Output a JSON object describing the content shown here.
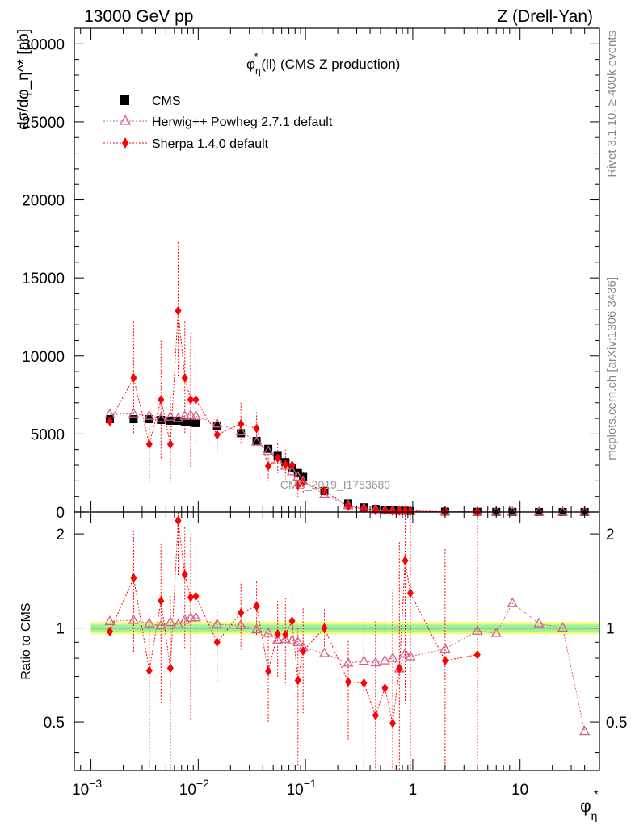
{
  "header": {
    "left": "13000 GeV pp",
    "right": "Z (Drell-Yan)"
  },
  "side_labels": {
    "rivet": "Rivet 3.1.10, ≥ 400k events",
    "source": "mcplots.cern.ch [arXiv:1306.3436]"
  },
  "watermark": "CMS_2019_I1753680",
  "chart_data": {
    "main": {
      "type": "scatter",
      "title_base": "φ",
      "title_sup": "*",
      "title_sub": "η",
      "title_rest": "(ll) (CMS Z production)",
      "ylabel": "dσ/dφ_η^* [pb]",
      "x_scale": "log",
      "xlim": [
        0.0007,
        55
      ],
      "ylim": [
        0,
        31000
      ],
      "y_ticks": [
        0,
        5000,
        10000,
        15000,
        20000,
        25000,
        30000
      ],
      "y_tick_labels": [
        "0",
        "5000",
        "10000",
        "15000",
        "20000",
        "25000",
        "30000"
      ],
      "legend_placement": "top-left",
      "x": [
        0.0015,
        0.0025,
        0.0035,
        0.0045,
        0.0055,
        0.0065,
        0.0075,
        0.0085,
        0.0095,
        0.015,
        0.025,
        0.035,
        0.045,
        0.055,
        0.065,
        0.075,
        0.085,
        0.095,
        0.15,
        0.25,
        0.35,
        0.45,
        0.55,
        0.65,
        0.75,
        0.85,
        0.95,
        2.0,
        4.0,
        6.0,
        8.5,
        15,
        25,
        40
      ],
      "series": [
        {
          "name": "CMS",
          "color": "#000000",
          "marker": "square",
          "values": [
            5950,
            5950,
            5950,
            5900,
            5850,
            5850,
            5800,
            5750,
            5700,
            5500,
            5050,
            4550,
            4050,
            3600,
            3200,
            2850,
            2500,
            2250,
            1350,
            550,
            300,
            200,
            140,
            105,
            85,
            70,
            58,
            28,
            14,
            8,
            5,
            3,
            2,
            1.5
          ]
        },
        {
          "name": "Herwig++ Powheg 2.7.1 default",
          "color": "#d06088",
          "marker": "triangle-open",
          "values": [
            6250,
            6300,
            6150,
            6000,
            6100,
            6000,
            6150,
            6200,
            6150,
            5650,
            5150,
            4500,
            3900,
            3300,
            2950,
            2600,
            2250,
            1950,
            1120,
            425,
            235,
            155,
            110,
            84,
            63,
            58,
            47,
            24,
            13.7,
            7.7,
            6.0,
            3.1,
            2.0,
            0.7
          ]
        },
        {
          "name": "Sherpa 1.4.0 default",
          "color": "#ff0000",
          "marker": "diamond",
          "values": [
            5800,
            8600,
            4350,
            7200,
            4350,
            12900,
            8600,
            7200,
            7200,
            4950,
            5650,
            5350,
            2950,
            3450,
            3050,
            3000,
            1700,
            1900,
            1350,
            370,
            200,
            105,
            90,
            52,
            63,
            115,
            75,
            22,
            11.5
          ]
        }
      ],
      "sherpa_err_hi": [
        6000,
        12200,
        6400,
        11000,
        7400,
        17300,
        12200,
        11500,
        10200,
        6200,
        7000,
        6400,
        3900,
        4400,
        4000,
        3900,
        2500,
        2600,
        1550,
        500,
        330,
        210,
        180,
        140,
        160,
        190,
        140,
        50,
        40
      ],
      "sherpa_err_lo": [
        5600,
        5000,
        1900,
        3400,
        1900,
        8600,
        5000,
        2900,
        4200,
        3700,
        4300,
        4300,
        2000,
        2500,
        2100,
        2100,
        900,
        1200,
        1150,
        240,
        70,
        0,
        0,
        0,
        0,
        40,
        10,
        0,
        0
      ]
    },
    "ratio": {
      "ylabel": "Ratio to CMS",
      "x_scale": "log",
      "ylim": [
        0.35,
        2.35
      ],
      "y_ticks": [
        0.5,
        1,
        2
      ],
      "y_tick_labels": [
        "0.5",
        "1",
        "2"
      ],
      "x_ticks": [
        0.001,
        0.01,
        0.1,
        1,
        10
      ],
      "x_tick_labels": [
        [
          "10",
          "−3"
        ],
        [
          "10",
          "−2"
        ],
        [
          "10",
          "−1"
        ],
        [
          "1",
          ""
        ],
        [
          "10",
          ""
        ]
      ],
      "xlabel_base": "φ",
      "xlabel_sup": "*",
      "xlabel_sub": "η",
      "band_inner_halfwidth": 0.025,
      "band_outer_halfwidth": 0.045
    }
  }
}
